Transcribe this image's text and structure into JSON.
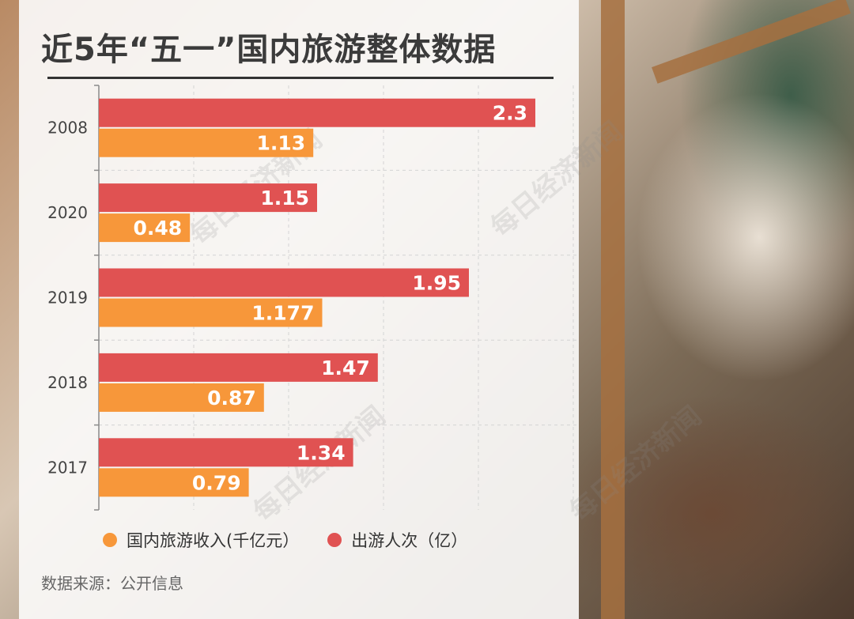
{
  "title": "近5年“五一”国内旅游整体数据",
  "source": "数据来源：公开信息",
  "watermark": "每日经济新闻",
  "colors": {
    "revenue": "#f7973a",
    "trips": "#e05252",
    "value_text": "#ffffff"
  },
  "legend": [
    {
      "label": "国内旅游收入(千亿元）",
      "series": "revenue"
    },
    {
      "label": "出游人次（亿）",
      "series": "trips"
    }
  ],
  "chart_data": {
    "type": "bar",
    "orientation": "horizontal",
    "categories": [
      "2008",
      "2020",
      "2019",
      "2018",
      "2017"
    ],
    "series": [
      {
        "name": "出游人次（亿）",
        "key": "trips",
        "values": [
          2.3,
          1.15,
          1.95,
          1.47,
          1.34
        ],
        "labels": [
          "2.3",
          "1.15",
          "1.95",
          "1.47",
          "1.34"
        ]
      },
      {
        "name": "国内旅游收入(千亿元）",
        "key": "revenue",
        "values": [
          1.13,
          0.48,
          1.177,
          0.87,
          0.79
        ],
        "labels": [
          "1.13",
          "0.48",
          "1.177",
          "0.87",
          "0.79"
        ]
      }
    ],
    "xlim": [
      0,
      2.5
    ],
    "grid": true,
    "legend_position": "bottom"
  }
}
